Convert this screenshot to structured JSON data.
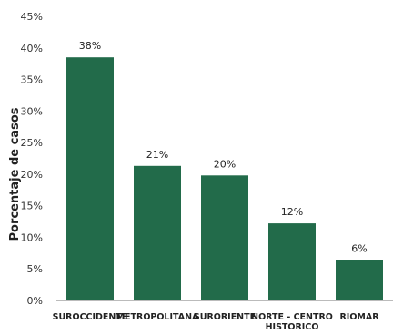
{
  "chart_data": {
    "type": "bar",
    "title": "",
    "xlabel": "",
    "ylabel": "Porcentaje de casos",
    "categories": [
      "SUROCCIDENTE",
      "METROPOLITANA",
      "SURORIENTE",
      "NORTE - CENTRO HISTORICO",
      "RIOMAR"
    ],
    "category_lines": [
      [
        "SUROCCIDENTE"
      ],
      [
        "METROPOLITANA"
      ],
      [
        "SURORIENTE"
      ],
      [
        "NORTE - CENTRO",
        "HISTORICO"
      ],
      [
        "RIOMAR"
      ]
    ],
    "values": [
      38.5,
      21.3,
      19.8,
      12.2,
      6.4
    ],
    "data_labels": [
      "38%",
      "21%",
      "20%",
      "12%",
      "6%"
    ],
    "yticks": [
      0,
      5,
      10,
      15,
      20,
      25,
      30,
      35,
      40,
      45
    ],
    "ytick_labels": [
      "0%",
      "5%",
      "10%",
      "15%",
      "20%",
      "25%",
      "30%",
      "35%",
      "40%",
      "45%"
    ],
    "ylim": [
      0,
      45
    ],
    "grid": false,
    "legend": "none",
    "bar_color": "#226b4a"
  }
}
